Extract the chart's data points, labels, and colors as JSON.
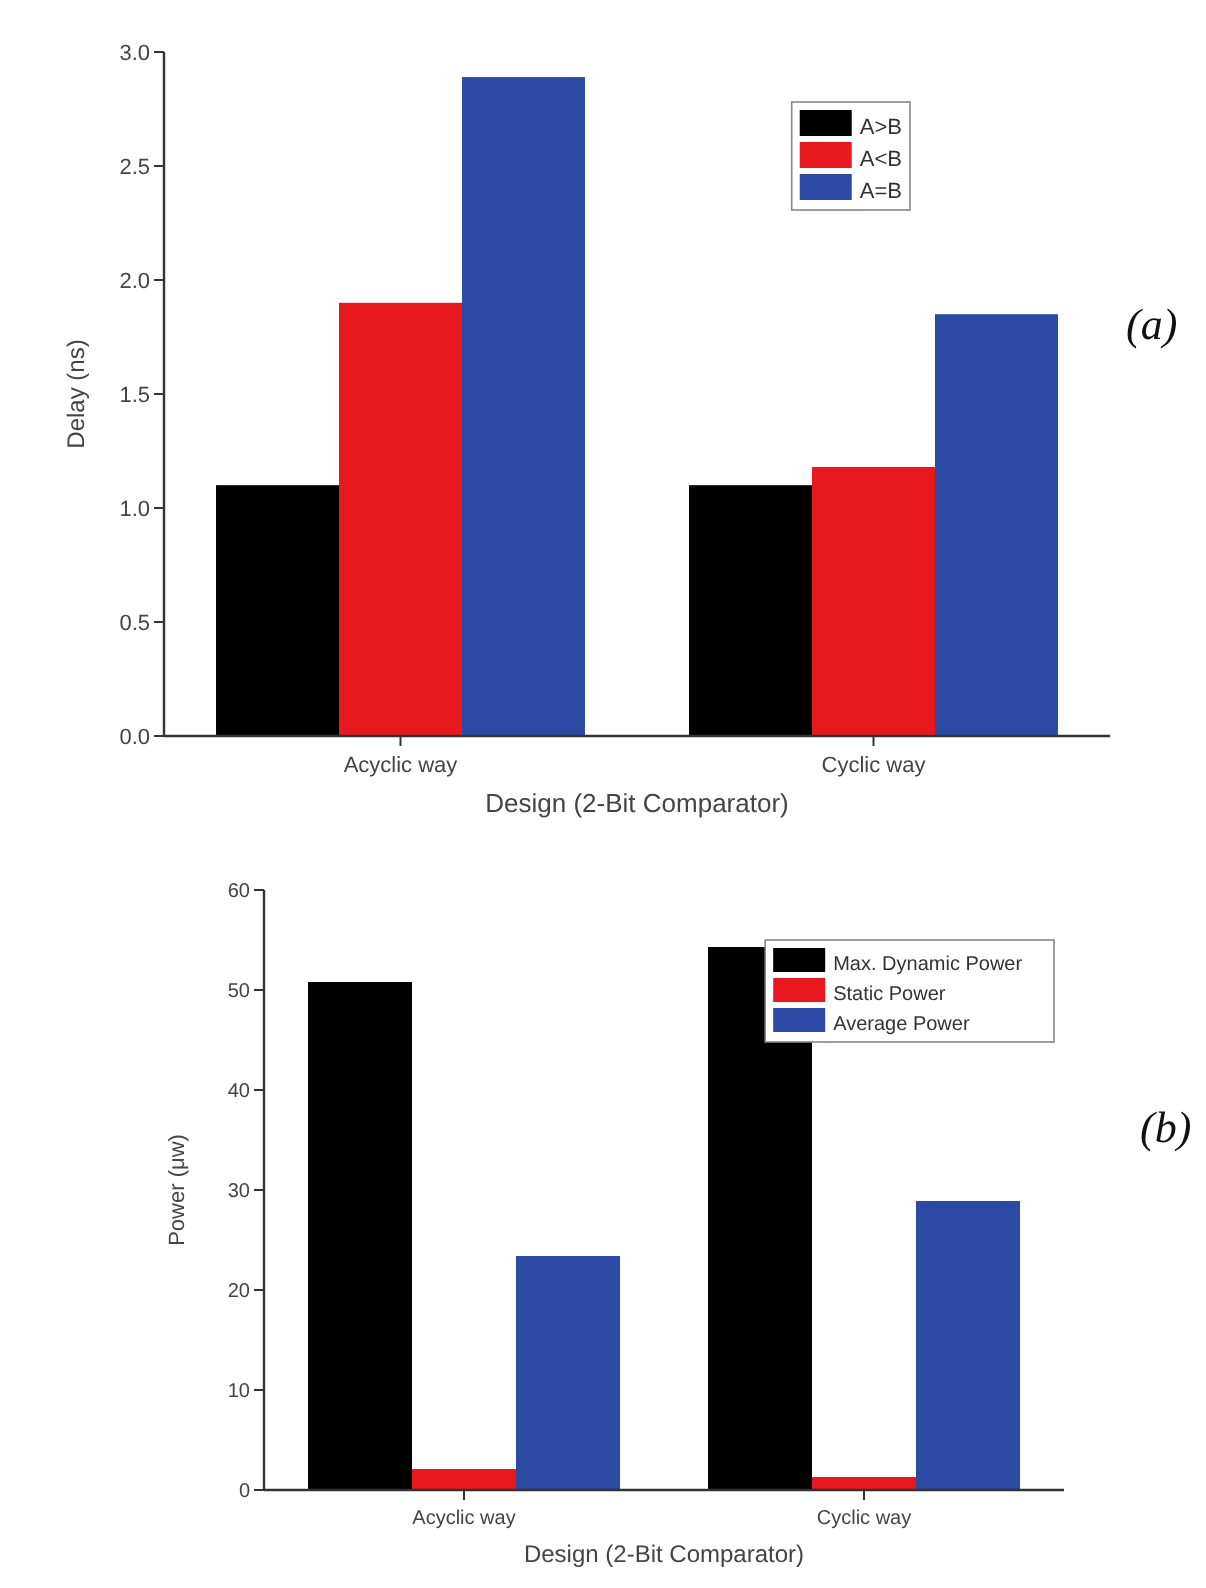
{
  "chart_data": [
    {
      "type": "bar",
      "xlabel": "Design (2-Bit Comparator)",
      "ylabel": "Delay (ns)",
      "categories": [
        "Acyclic way",
        "Cyclic way"
      ],
      "series": [
        {
          "name": "A>B",
          "color": "#000000",
          "values": [
            1.1,
            1.1
          ]
        },
        {
          "name": "A<B",
          "color": "#e8191e",
          "values": [
            1.9,
            1.18
          ]
        },
        {
          "name": "A=B",
          "color": "#2b4aa4",
          "values": [
            2.89,
            1.85
          ]
        }
      ],
      "ylim": [
        0,
        3
      ],
      "yticks": [
        {
          "value": 0,
          "label": "0.0"
        },
        {
          "value": 0.5,
          "label": "0.5"
        },
        {
          "value": 1,
          "label": "1.0"
        },
        {
          "value": 1.5,
          "label": "1.5"
        },
        {
          "value": 2,
          "label": "2.0"
        },
        {
          "value": 2.5,
          "label": "2.5"
        },
        {
          "value": 3,
          "label": "3.0"
        }
      ],
      "legend": "top right",
      "annotations": [
        "(a)"
      ]
    },
    {
      "type": "bar",
      "xlabel": "Design (2-Bit Comparator)",
      "ylabel": "Power (μw)",
      "categories": [
        "Acyclic way",
        "Cyclic way"
      ],
      "series": [
        {
          "name": "Max. Dynamic Power",
          "color": "#000000",
          "values": [
            50.8,
            54.3
          ]
        },
        {
          "name": "Static Power",
          "color": "#e8191e",
          "values": [
            2.1,
            1.3
          ]
        },
        {
          "name": "Average Power",
          "color": "#2b4aa4",
          "values": [
            23.4,
            28.9
          ]
        }
      ],
      "ylim": [
        0,
        60
      ],
      "yticks": [
        0,
        10,
        20,
        30,
        40,
        50,
        60
      ],
      "legend": "top right",
      "annotations": [
        "(b)"
      ]
    }
  ]
}
